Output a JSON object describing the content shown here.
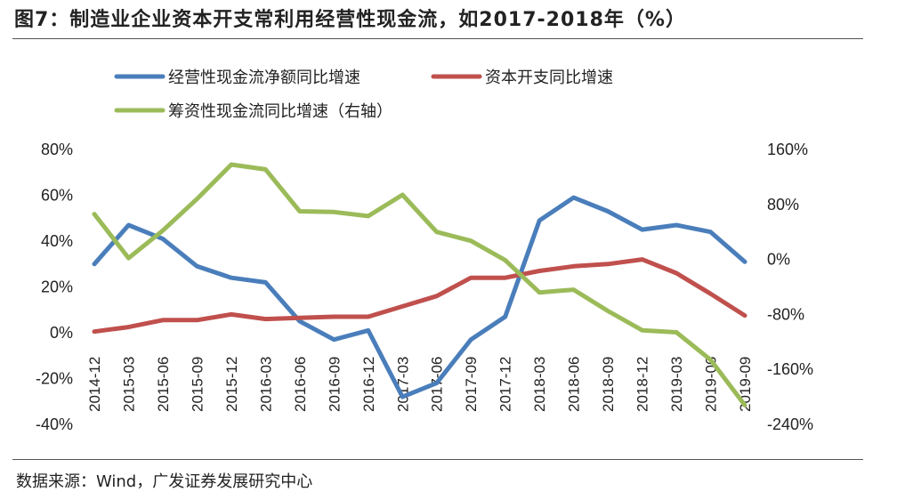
{
  "title": "图7：制造业企业资本开支常利用经营性现金流，如2017-2018年（%）",
  "source": "数据来源：Wind，广发证券发展研究中心",
  "chart_data": {
    "type": "line",
    "title": "图7：制造业企业资本开支常利用经营性现金流，如2017-2018年（%）",
    "categories": [
      "2014-12",
      "2015-03",
      "2015-06",
      "2015-09",
      "2015-12",
      "2016-03",
      "2016-06",
      "2016-09",
      "2016-12",
      "2017-03",
      "2017-06",
      "2017-09",
      "2017-12",
      "2018-03",
      "2018-06",
      "2018-09",
      "2018-12",
      "2019-03",
      "2019-06",
      "2019-09"
    ],
    "y_left": {
      "range": [
        -40,
        80
      ],
      "ticks": [
        "-40%",
        "-20%",
        "0%",
        "20%",
        "40%",
        "60%",
        "80%"
      ]
    },
    "y_right": {
      "range": [
        -240,
        160
      ],
      "ticks": [
        "-240%",
        "-160%",
        "-80%",
        "0%",
        "80%",
        "160%"
      ]
    },
    "series": [
      {
        "name": "经营性现金流净额同比增速",
        "color": "#4a7ebb",
        "axis": "left",
        "values": [
          30,
          47,
          41,
          29,
          24,
          22,
          5,
          -3,
          1,
          -28,
          -22,
          -3,
          7,
          49,
          59,
          53,
          45,
          47,
          44,
          31
        ]
      },
      {
        "name": "资本开支同比增速",
        "color": "#c0504d",
        "axis": "left",
        "values": [
          0.5,
          2.5,
          5.5,
          5.5,
          8,
          6,
          6.5,
          7,
          7,
          11.5,
          16,
          24,
          24,
          27,
          29,
          30,
          32,
          26,
          17,
          7.5
        ]
      },
      {
        "name": "筹资性现金流同比增速（右轴）",
        "color": "#9bbb59",
        "axis": "right",
        "values": [
          66,
          2,
          42,
          88,
          138,
          131,
          70,
          69,
          63,
          94,
          40,
          27,
          -1,
          -48,
          -44,
          -75,
          -103,
          -106,
          -146,
          -212
        ]
      }
    ],
    "legend_position": "top",
    "grid": false
  }
}
